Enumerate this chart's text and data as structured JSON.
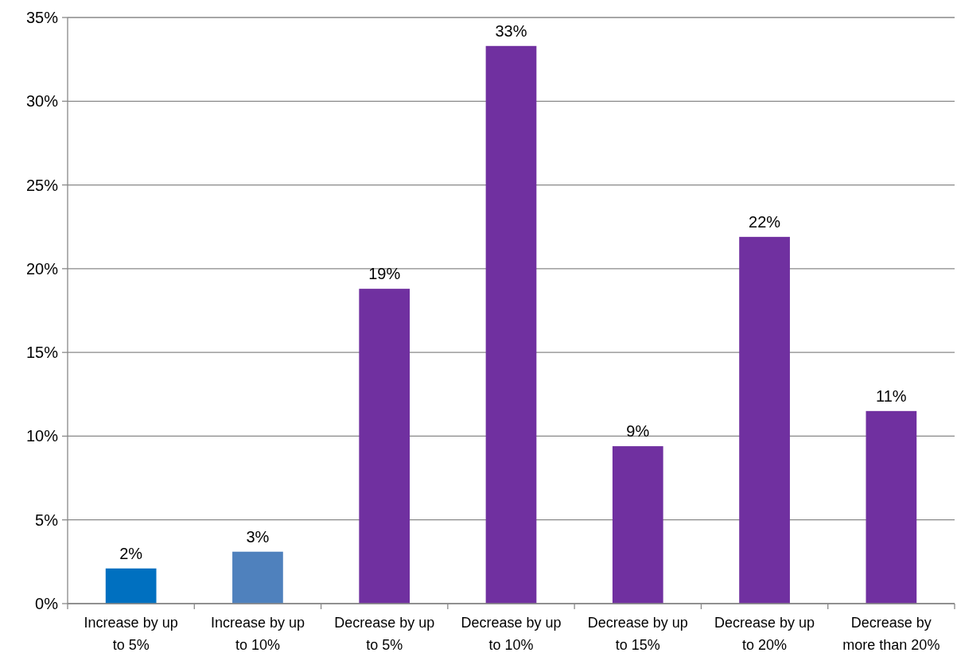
{
  "chart_data": {
    "type": "bar",
    "categories": [
      "Increase by up to 5%",
      "Increase by up to 10%",
      "Decrease by up to 5%",
      "Decrease by up to 10%",
      "Decrease by up to 15%",
      "Decrease by up to 20%",
      "Decrease by more than 20%"
    ],
    "values": [
      2.1,
      3.1,
      18.8,
      33.3,
      9.4,
      21.9,
      11.5
    ],
    "colors": [
      "#0070c0",
      "#4f81bd",
      "#7030a0",
      "#7030a0",
      "#7030a0",
      "#7030a0",
      "#7030a0"
    ],
    "value_labels": [
      "2%",
      "3%",
      "19%",
      "33%",
      "9%",
      "22%",
      "11%"
    ],
    "ylim": [
      0,
      35
    ],
    "yticks": [
      {
        "value": 0,
        "label": "0%"
      },
      {
        "value": 5,
        "label": "5%"
      },
      {
        "value": 10,
        "label": "10%"
      },
      {
        "value": 15,
        "label": "15%"
      },
      {
        "value": 20,
        "label": "20%"
      },
      {
        "value": 25,
        "label": "25%"
      },
      {
        "value": 30,
        "label": "30%"
      },
      {
        "value": 35,
        "label": "35%"
      }
    ],
    "grid": "y"
  }
}
